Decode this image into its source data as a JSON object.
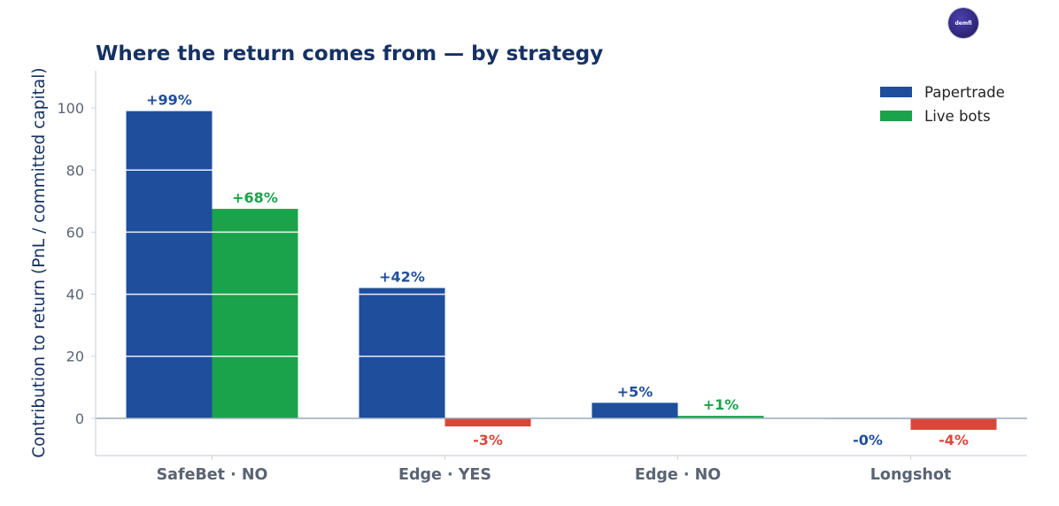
{
  "logo_text": "demfi",
  "chart_data": {
    "type": "bar",
    "title": "Where the return comes from — by strategy",
    "xlabel": "",
    "ylabel": "Contribution to return (PnL / committed capital)",
    "categories": [
      "SafeBet · NO",
      "Edge · YES",
      "Edge · NO",
      "Longshot"
    ],
    "series": [
      {
        "name": "Papertrade",
        "color": "#1f4e9c",
        "values": [
          99,
          42,
          5,
          -0.2
        ],
        "labels": [
          "+99%",
          "+42%",
          "+5%",
          "-0%"
        ]
      },
      {
        "name": "Live bots",
        "color": "#1aa34a",
        "values": [
          67.5,
          -2.6,
          0.8,
          -3.7
        ],
        "labels": [
          "+68%",
          "-3%",
          "+1%",
          "-4%"
        ]
      }
    ],
    "negative_color": "#d9473a",
    "ylim": [
      -12,
      112
    ],
    "yticks": [
      0,
      20,
      40,
      60,
      80,
      100
    ],
    "grid": true,
    "legend_position": "top-right",
    "colors": {
      "title": "#163264",
      "axis_text": "#5a6474",
      "grid": "#e9ecef",
      "zero_line": "#9aa9b8",
      "spine": "#cfd4da"
    }
  }
}
